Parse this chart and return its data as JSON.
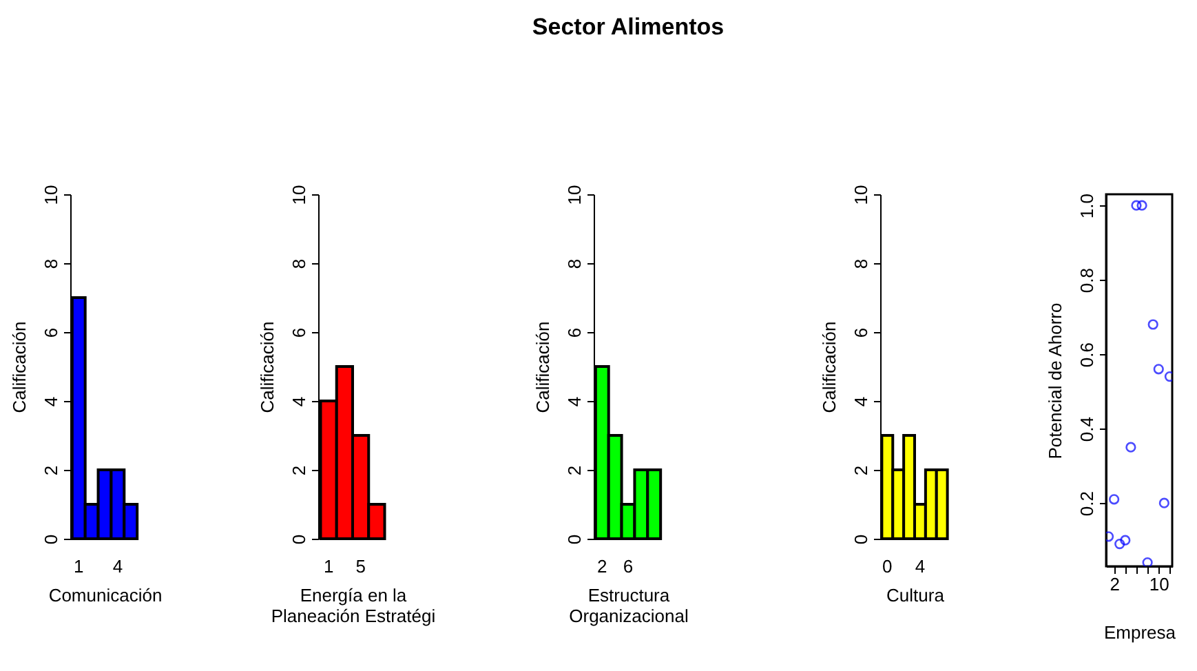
{
  "chart_data": [
    {
      "type": "bar",
      "categories": [
        "1",
        null,
        null,
        "4",
        null
      ],
      "values": [
        7,
        1,
        2,
        2,
        1
      ],
      "color": "#0000ff",
      "ylim": [
        0,
        10
      ],
      "yticks": [
        0,
        2,
        4,
        6,
        8,
        10
      ],
      "xlabel": "Comunicación",
      "ylabel": "Calificación",
      "grid": false
    },
    {
      "type": "bar",
      "categories": [
        "1",
        null,
        "5",
        null
      ],
      "values": [
        4,
        5,
        3,
        1
      ],
      "color": "#ff0000",
      "ylim": [
        0,
        10
      ],
      "yticks": [
        0,
        2,
        4,
        6,
        8,
        10
      ],
      "xlabel": "Energía en la\nPlaneación Estratégi",
      "ylabel": "Calificación",
      "grid": false
    },
    {
      "type": "bar",
      "categories": [
        "2",
        null,
        "6",
        null,
        null
      ],
      "title": "Sector Alimentos",
      "values": [
        5,
        3,
        1,
        2,
        2
      ],
      "color": "#00ff00",
      "ylim": [
        0,
        10
      ],
      "yticks": [
        0,
        2,
        4,
        6,
        8,
        10
      ],
      "xlabel": "Estructura\nOrganizacional",
      "ylabel": "Calificación",
      "grid": false
    },
    {
      "type": "bar",
      "categories": [
        "0",
        null,
        null,
        "4",
        null,
        null
      ],
      "values": [
        3,
        2,
        3,
        1,
        2,
        2
      ],
      "color": "#ffff00",
      "ylim": [
        0,
        10
      ],
      "yticks": [
        0,
        2,
        4,
        6,
        8,
        10
      ],
      "xlabel": "Cultura",
      "ylabel": "Calificación",
      "grid": false
    },
    {
      "type": "scatter",
      "x": [
        1,
        2,
        3,
        4,
        5,
        6,
        7,
        8,
        9,
        10,
        11,
        12
      ],
      "values": [
        0.11,
        0.21,
        0.09,
        0.1,
        0.35,
        1.0,
        1.0,
        0.04,
        0.68,
        0.56,
        0.2,
        0.54
      ],
      "color": "#0000ff",
      "marker": "circle",
      "xlim": [
        0.56,
        12.44
      ],
      "xticks": [
        {
          "value": 2,
          "label": "2"
        },
        {
          "value": 4,
          "label": null
        },
        {
          "value": 6,
          "label": null
        },
        {
          "value": 8,
          "label": null
        },
        {
          "value": 10,
          "label": "10"
        },
        {
          "value": 12,
          "label": null
        }
      ],
      "ylim": [
        0.03,
        1.03
      ],
      "yticks": [
        0.2,
        0.4,
        0.6,
        0.8,
        {
          "value": 1,
          "label": "1.0"
        }
      ],
      "xlabel": "Empresa",
      "ylabel": "Potencial de Ahorro",
      "grid": false
    }
  ]
}
